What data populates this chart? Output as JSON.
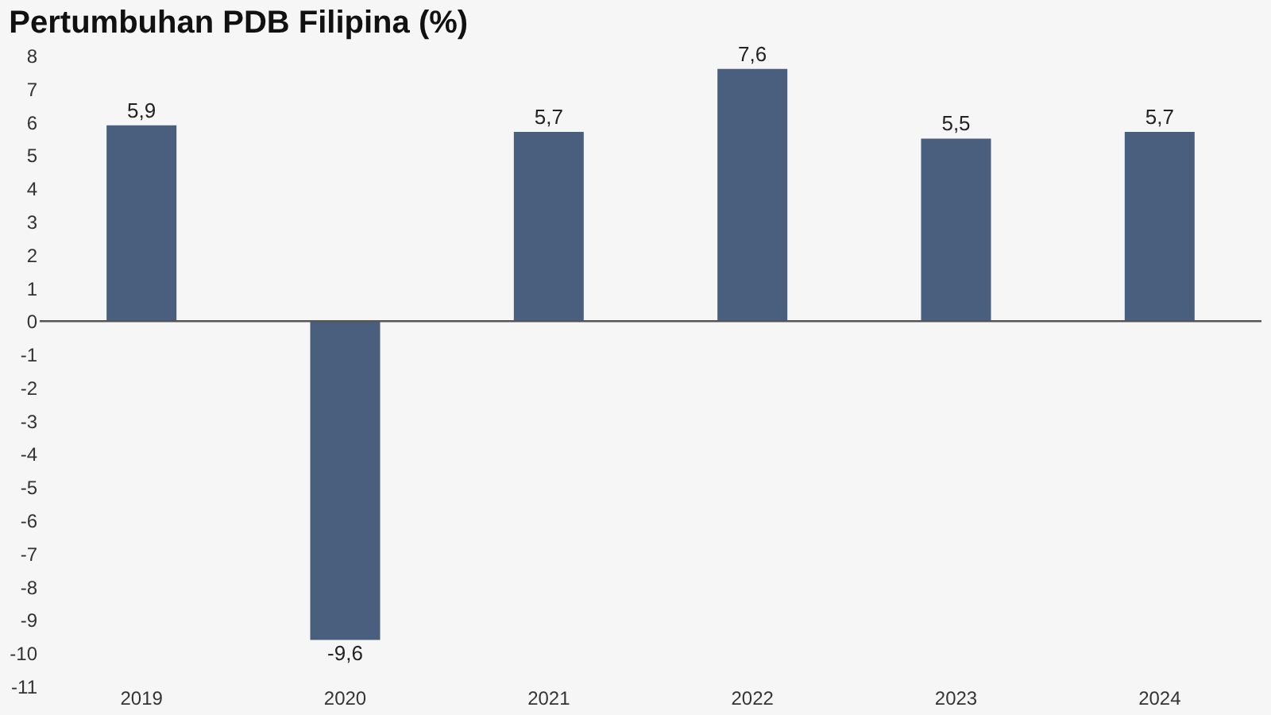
{
  "chart_data": {
    "type": "bar",
    "title": "Pertumbuhan PDB Filipina (%)",
    "categories": [
      "2019",
      "2020",
      "2021",
      "2022",
      "2023",
      "2024"
    ],
    "values": [
      5.9,
      -9.6,
      5.7,
      7.6,
      5.5,
      5.7
    ],
    "color": "#4a5f7e",
    "value_labels": [
      "5,9",
      "-9,6",
      "5,7",
      "7,6",
      "5,5",
      "5,7"
    ],
    "ylim": [
      -11,
      8
    ],
    "yticks": [
      -11,
      -10,
      -9,
      -8,
      -7,
      -6,
      -5,
      -4,
      -3,
      -2,
      -1,
      0,
      1,
      2,
      3,
      4,
      5,
      6,
      7,
      8
    ],
    "grid": false,
    "ref_lines": [
      {
        "axis": "y",
        "value": 0,
        "color": "#555555"
      }
    ]
  }
}
